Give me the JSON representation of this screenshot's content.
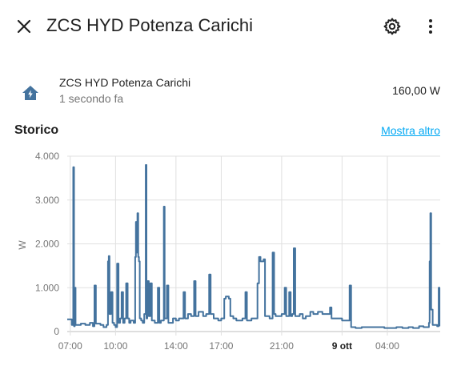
{
  "header": {
    "title": "ZCS HYD Potenza Carichi",
    "close_icon": "close-icon",
    "settings_icon": "gear-icon",
    "more_icon": "more-vertical-icon"
  },
  "entity": {
    "icon": "home-lightning-icon",
    "name": "ZCS HYD Potenza Carichi",
    "last_changed": "1 secondo fa",
    "state": "160,00 W"
  },
  "history": {
    "title": "Storico",
    "more_link": "Mostra altro"
  },
  "colors": {
    "accent": "#03a9f4",
    "series": "#44739e",
    "icon": "#44739e"
  },
  "chart_data": {
    "type": "line",
    "ylabel": "W",
    "ylim": [
      0,
      4000
    ],
    "y_ticks": [
      "0",
      "1.000",
      "2.000",
      "3.000",
      "4.000"
    ],
    "x_ticks": [
      "07:00",
      "10:00",
      "14:00",
      "17:00",
      "21:00",
      "9 ott",
      "04:00"
    ],
    "bold_tick": "9 ott",
    "grid": true,
    "series": [
      {
        "name": "",
        "points": [
          [
            6.8,
            280
          ],
          [
            7.05,
            280
          ],
          [
            7.1,
            150
          ],
          [
            7.2,
            3750
          ],
          [
            7.25,
            120
          ],
          [
            7.3,
            1000
          ],
          [
            7.35,
            150
          ],
          [
            7.7,
            180
          ],
          [
            8.0,
            150
          ],
          [
            8.3,
            200
          ],
          [
            8.5,
            120
          ],
          [
            8.6,
            1050
          ],
          [
            8.7,
            180
          ],
          [
            9.0,
            150
          ],
          [
            9.2,
            100
          ],
          [
            9.4,
            150
          ],
          [
            9.5,
            1600
          ],
          [
            9.55,
            1720
          ],
          [
            9.6,
            400
          ],
          [
            9.7,
            900
          ],
          [
            9.8,
            200
          ],
          [
            9.9,
            150
          ],
          [
            10.0,
            100
          ],
          [
            10.1,
            1550
          ],
          [
            10.2,
            200
          ],
          [
            10.3,
            300
          ],
          [
            10.4,
            900
          ],
          [
            10.5,
            200
          ],
          [
            10.6,
            300
          ],
          [
            10.7,
            1100
          ],
          [
            10.8,
            300
          ],
          [
            10.9,
            200
          ],
          [
            11.0,
            250
          ],
          [
            11.2,
            200
          ],
          [
            11.3,
            1700
          ],
          [
            11.35,
            2500
          ],
          [
            11.4,
            1800
          ],
          [
            11.45,
            2700
          ],
          [
            11.5,
            1700
          ],
          [
            11.55,
            1600
          ],
          [
            11.6,
            300
          ],
          [
            11.7,
            250
          ],
          [
            11.8,
            200
          ],
          [
            11.9,
            400
          ],
          [
            12.0,
            3800
          ],
          [
            12.05,
            300
          ],
          [
            12.1,
            1150
          ],
          [
            12.2,
            350
          ],
          [
            12.3,
            1100
          ],
          [
            12.4,
            250
          ],
          [
            12.6,
            200
          ],
          [
            12.8,
            1000
          ],
          [
            12.9,
            200
          ],
          [
            13.0,
            250
          ],
          [
            13.2,
            2850
          ],
          [
            13.25,
            300
          ],
          [
            13.4,
            1050
          ],
          [
            13.5,
            200
          ],
          [
            13.8,
            300
          ],
          [
            14.0,
            250
          ],
          [
            14.2,
            300
          ],
          [
            14.5,
            900
          ],
          [
            14.6,
            300
          ],
          [
            14.8,
            400
          ],
          [
            15.0,
            350
          ],
          [
            15.2,
            1150
          ],
          [
            15.3,
            350
          ],
          [
            15.5,
            450
          ],
          [
            15.8,
            350
          ],
          [
            16.0,
            400
          ],
          [
            16.2,
            1300
          ],
          [
            16.3,
            400
          ],
          [
            16.5,
            300
          ],
          [
            16.8,
            250
          ],
          [
            17.0,
            300
          ],
          [
            17.2,
            750
          ],
          [
            17.3,
            800
          ],
          [
            17.5,
            750
          ],
          [
            17.6,
            350
          ],
          [
            17.8,
            300
          ],
          [
            18.0,
            250
          ],
          [
            18.4,
            300
          ],
          [
            18.6,
            900
          ],
          [
            18.7,
            250
          ],
          [
            19.0,
            300
          ],
          [
            19.4,
            1100
          ],
          [
            19.5,
            1700
          ],
          [
            19.6,
            1600
          ],
          [
            19.8,
            1650
          ],
          [
            19.9,
            350
          ],
          [
            20.2,
            300
          ],
          [
            20.4,
            1800
          ],
          [
            20.5,
            400
          ],
          [
            20.6,
            350
          ],
          [
            21.0,
            400
          ],
          [
            21.2,
            1000
          ],
          [
            21.3,
            350
          ],
          [
            21.5,
            900
          ],
          [
            21.6,
            350
          ],
          [
            21.7,
            400
          ],
          [
            21.8,
            1900
          ],
          [
            21.9,
            350
          ],
          [
            22.2,
            400
          ],
          [
            22.4,
            300
          ],
          [
            22.6,
            350
          ],
          [
            22.9,
            450
          ],
          [
            23.1,
            400
          ],
          [
            23.4,
            450
          ],
          [
            23.7,
            400
          ],
          [
            24.0,
            400
          ],
          [
            24.2,
            550
          ],
          [
            24.3,
            300
          ],
          [
            24.6,
            300
          ],
          [
            25.0,
            250
          ],
          [
            25.4,
            250
          ],
          [
            25.5,
            1050
          ],
          [
            25.6,
            100
          ],
          [
            25.9,
            80
          ],
          [
            26.3,
            100
          ],
          [
            26.8,
            100
          ],
          [
            27.3,
            100
          ],
          [
            27.8,
            80
          ],
          [
            28.2,
            80
          ],
          [
            28.6,
            100
          ],
          [
            29.0,
            80
          ],
          [
            29.4,
            100
          ],
          [
            29.7,
            80
          ],
          [
            30.1,
            120
          ],
          [
            30.4,
            100
          ],
          [
            30.75,
            200
          ],
          [
            30.8,
            1600
          ],
          [
            30.85,
            2700
          ],
          [
            30.9,
            500
          ],
          [
            31.0,
            150
          ],
          [
            31.3,
            120
          ],
          [
            31.4,
            1000
          ],
          [
            31.45,
            120
          ]
        ]
      }
    ]
  }
}
